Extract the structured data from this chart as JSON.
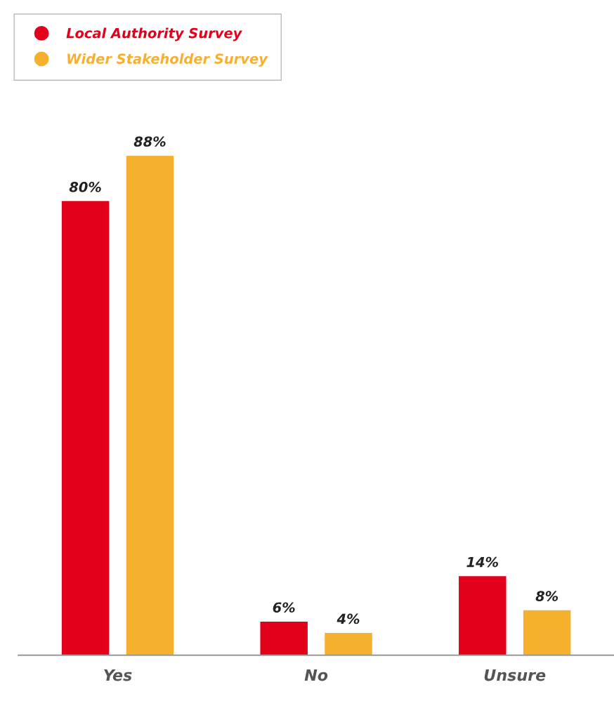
{
  "chart_data": {
    "type": "bar",
    "categories": [
      "Yes",
      "No",
      "Unsure"
    ],
    "series": [
      {
        "name": "Local Authority Survey",
        "color": "#e2001a",
        "values": [
          80,
          6,
          14
        ],
        "value_labels": [
          "80%",
          "6%",
          "14%"
        ]
      },
      {
        "name": "Wider Stakeholder Survey",
        "color": "#f5b02e",
        "values": [
          88,
          4,
          8
        ],
        "value_labels": [
          "88%",
          "4%",
          "8%"
        ]
      }
    ],
    "legend": "top left",
    "grid": false,
    "tick_labels": "x"
  }
}
